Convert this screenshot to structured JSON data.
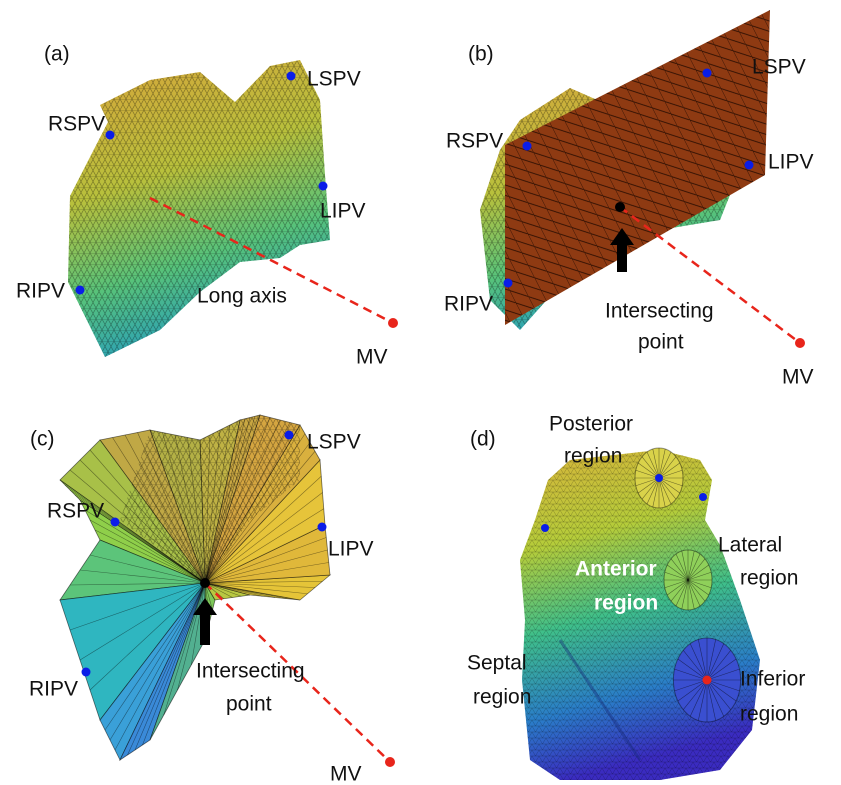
{
  "panels": [
    {
      "label": "(a)",
      "landmarks": [
        "RSPV",
        "LSPV",
        "LIPV",
        "RIPV",
        "MV"
      ],
      "axis_label": "Long axis"
    },
    {
      "label": "(b)",
      "landmarks": [
        "RSPV",
        "LSPV",
        "LIPV",
        "RIPV",
        "MV"
      ],
      "point_label": [
        "Intersecting",
        "point"
      ]
    },
    {
      "label": "(c)",
      "landmarks": [
        "RSPV",
        "LSPV",
        "LIPV",
        "RIPV",
        "MV"
      ],
      "point_label": [
        "Intersecting",
        "point"
      ]
    },
    {
      "label": "(d)",
      "regions": [
        [
          "Posterior",
          "region"
        ],
        [
          "Lateral",
          "region"
        ],
        [
          "Anterior",
          "region"
        ],
        [
          "Septal",
          "region"
        ],
        [
          "Inferior",
          "region"
        ]
      ]
    }
  ]
}
